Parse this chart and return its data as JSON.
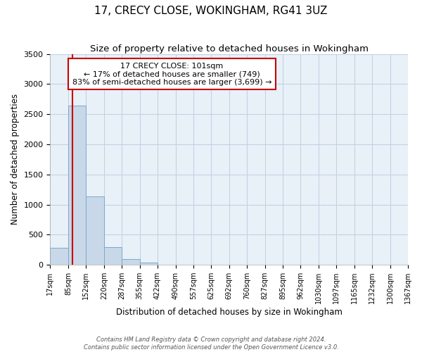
{
  "title": "17, CRECY CLOSE, WOKINGHAM, RG41 3UZ",
  "subtitle": "Size of property relative to detached houses in Wokingham",
  "xlabel": "Distribution of detached houses by size in Wokingham",
  "ylabel": "Number of detached properties",
  "bin_edges": [
    17,
    85,
    152,
    220,
    287,
    355,
    422,
    490,
    557,
    625,
    692,
    760,
    827,
    895,
    962,
    1030,
    1097,
    1165,
    1232,
    1300,
    1367
  ],
  "bin_labels": [
    "17sqm",
    "85sqm",
    "152sqm",
    "220sqm",
    "287sqm",
    "355sqm",
    "422sqm",
    "490sqm",
    "557sqm",
    "625sqm",
    "692sqm",
    "760sqm",
    "827sqm",
    "895sqm",
    "962sqm",
    "1030sqm",
    "1097sqm",
    "1165sqm",
    "1232sqm",
    "1300sqm",
    "1367sqm"
  ],
  "counts": [
    280,
    2640,
    1140,
    290,
    95,
    35,
    0,
    0,
    0,
    0,
    0,
    0,
    0,
    0,
    0,
    0,
    0,
    0,
    0,
    0
  ],
  "bar_color": "#c8d8e8",
  "bar_edge_color": "#7aa8cc",
  "property_size": 101,
  "vline_color": "#cc0000",
  "annotation_line1": "17 CRECY CLOSE: 101sqm",
  "annotation_line2": "← 17% of detached houses are smaller (749)",
  "annotation_line3": "83% of semi-detached houses are larger (3,699) →",
  "annotation_box_color": "#ffffff",
  "annotation_box_edge": "#cc0000",
  "ylim": [
    0,
    3500
  ],
  "yticks": [
    0,
    500,
    1000,
    1500,
    2000,
    2500,
    3000,
    3500
  ],
  "footer_line1": "Contains HM Land Registry data © Crown copyright and database right 2024.",
  "footer_line2": "Contains public sector information licensed under the Open Government Licence v3.0.",
  "background_color": "#ffffff",
  "plot_bg_color": "#e8f0f8",
  "grid_color": "#c0cfe0",
  "title_fontsize": 11,
  "subtitle_fontsize": 9.5,
  "tick_fontsize": 7,
  "axis_label_fontsize": 8.5
}
